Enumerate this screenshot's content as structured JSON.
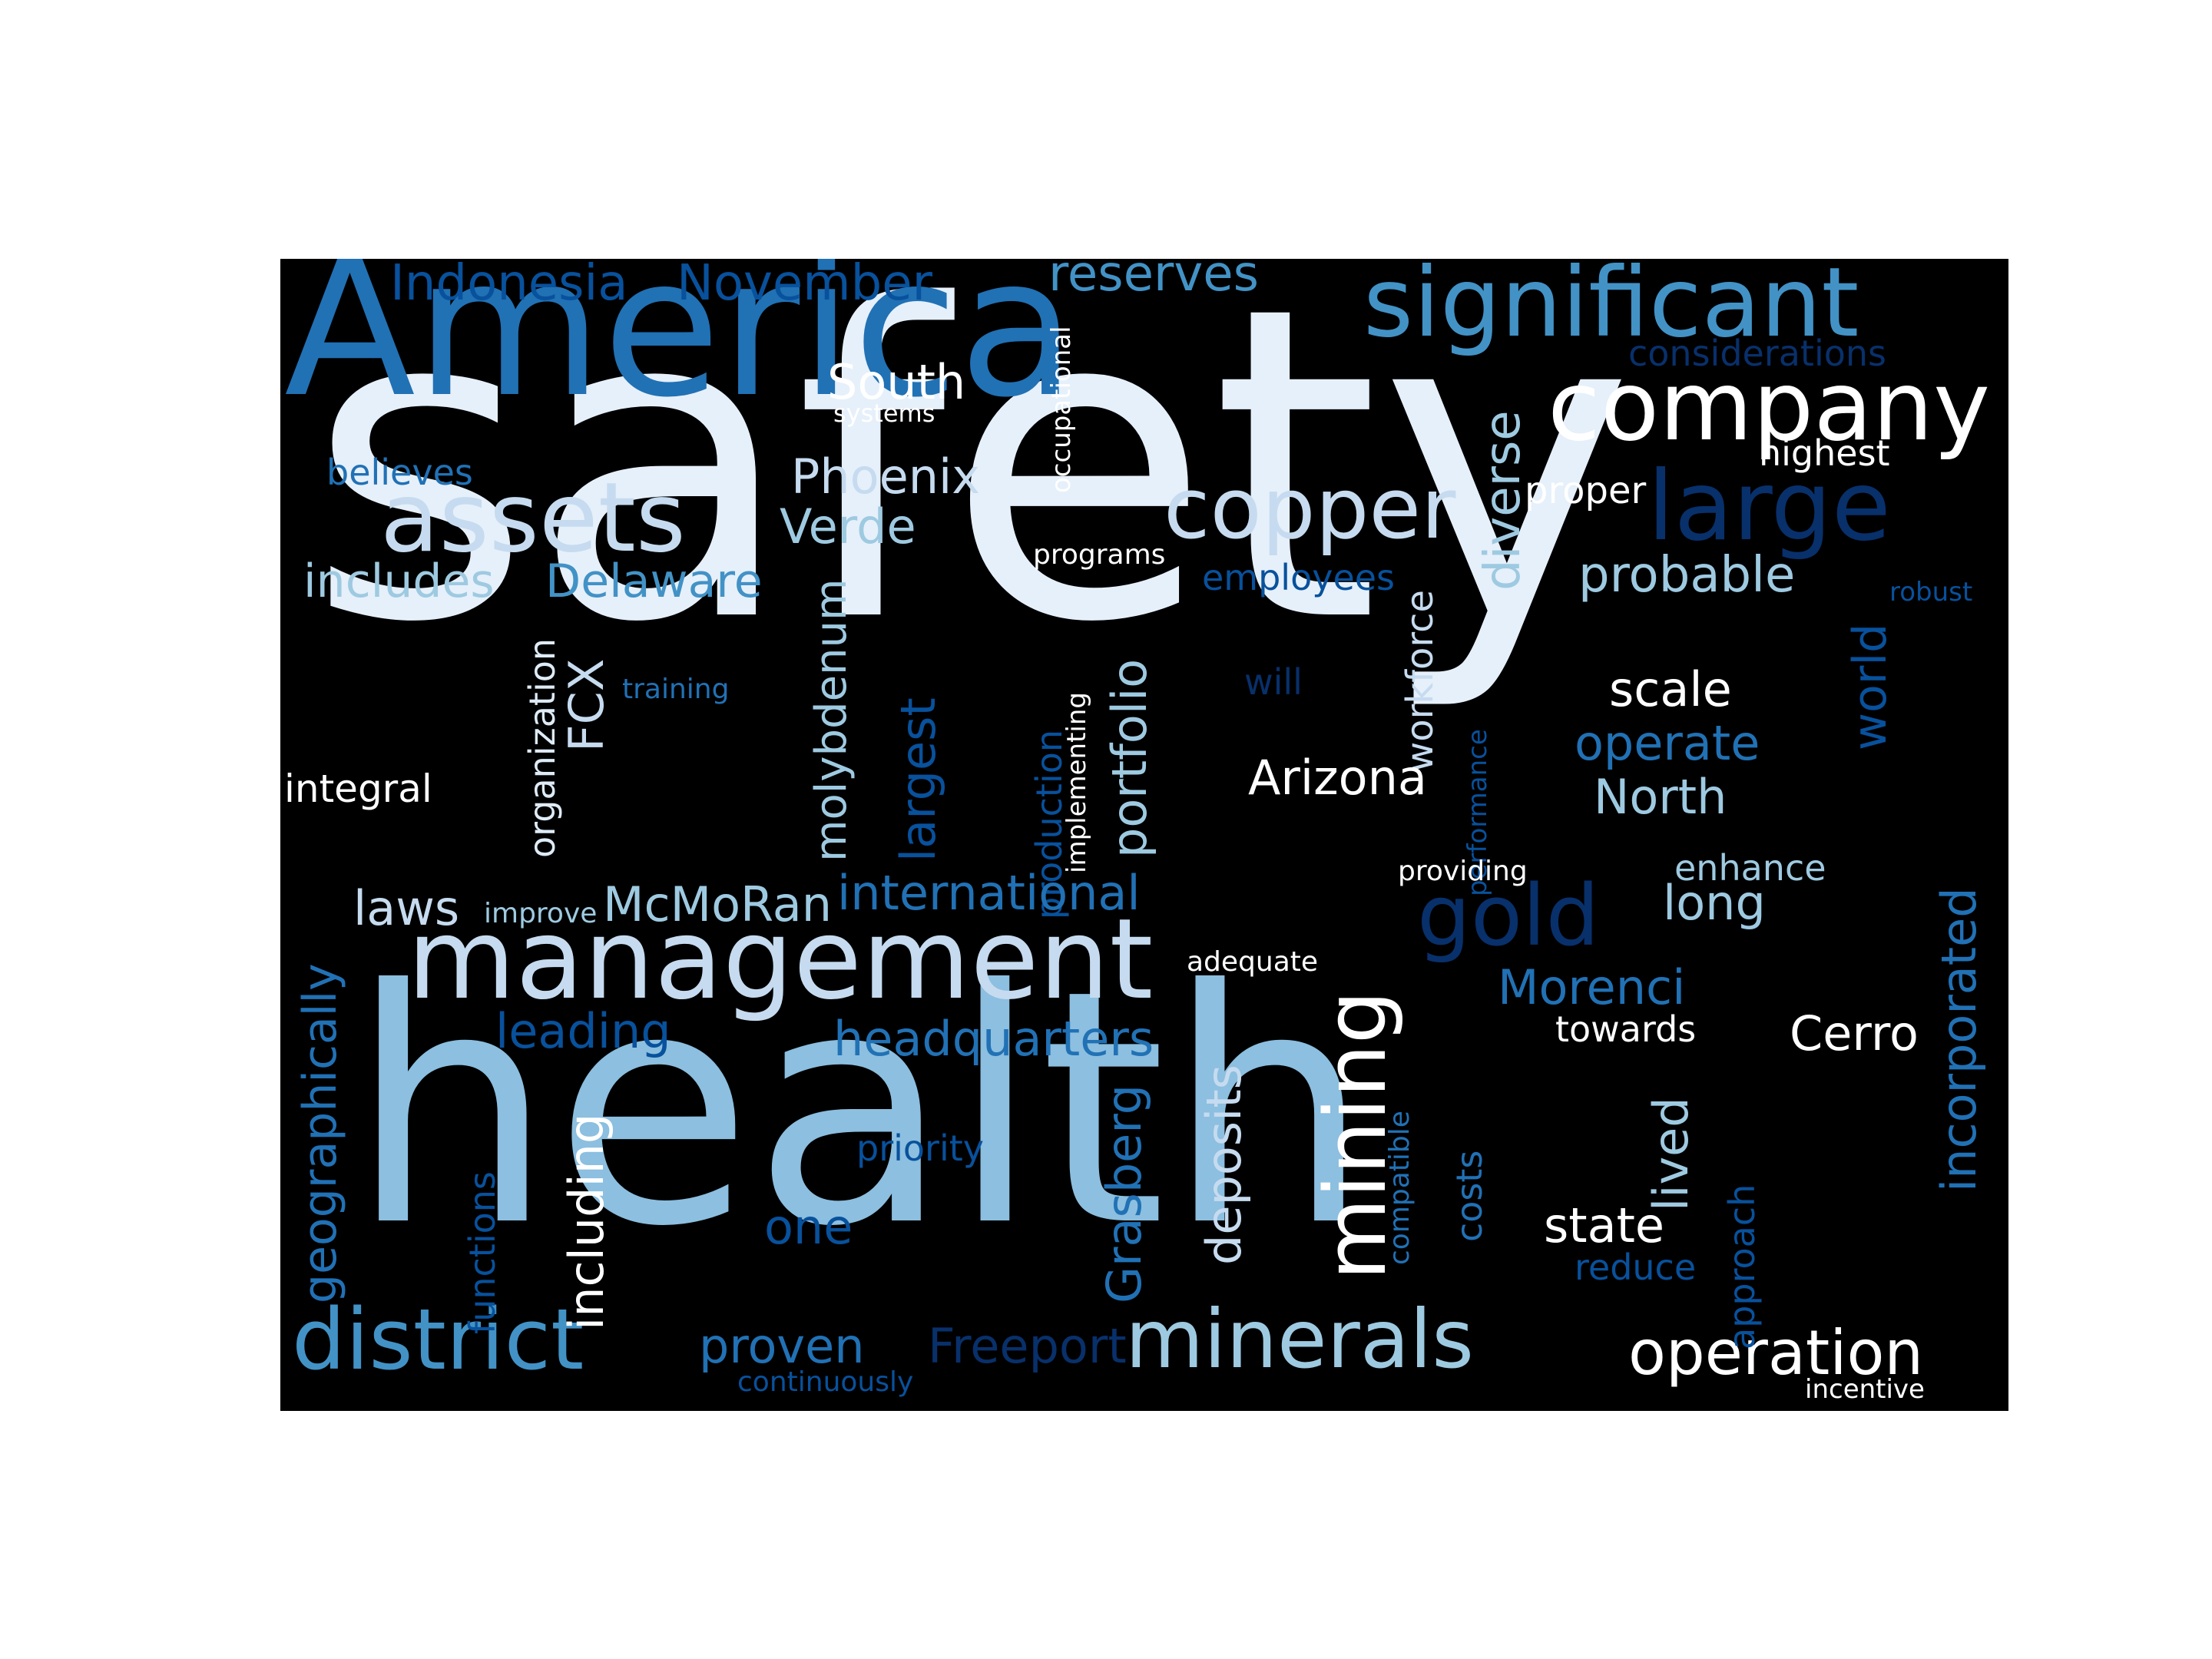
{
  "words": {
    "safety": "safety",
    "health": "health",
    "america": "America",
    "significant": "significant",
    "company": "company",
    "copper": "copper",
    "large": "large",
    "assets": "assets",
    "management": "management",
    "mining": "mining",
    "gold": "gold",
    "district": "district",
    "minerals": "minerals",
    "operation": "operation",
    "indonesia": "Indonesia",
    "november": "November",
    "reserves": "reserves",
    "considerations": "considerations",
    "south": "South",
    "systems": "systems",
    "occupational": "occupational",
    "highest": "highest",
    "believes": "believes",
    "phoenix": "Phoenix",
    "verde": "Verde",
    "diverse": "diverse",
    "proper": "proper",
    "includes": "includes",
    "delaware": "Delaware",
    "programs": "programs",
    "employees": "employees",
    "probable": "probable",
    "robust": "robust",
    "organization": "organization",
    "fcx": "FCX",
    "training": "training",
    "molybdenum": "molybdenum",
    "largest": "largest",
    "production": "production",
    "implementing": "implementing",
    "portfolio": "portfolio",
    "will": "will",
    "workforce": "workforce",
    "performance": "performance",
    "world": "world",
    "scale": "scale",
    "operate": "operate",
    "north": "North",
    "integral": "integral",
    "arizona": "Arizona",
    "laws": "laws",
    "improve": "improve",
    "mcmoran": "McMoRan",
    "international": "international",
    "providing": "providing",
    "enhance": "enhance",
    "long": "long",
    "incorporated": "incorporated",
    "geographically": "geographically",
    "adequate": "adequate",
    "morenci": "Morenci",
    "leading": "leading",
    "headquarters": "headquarters",
    "towards": "towards",
    "cerro": "Cerro",
    "including": "including",
    "deposits": "deposits",
    "grasberg": "Grasberg",
    "compatible": "compatible",
    "costs": "costs",
    "lived": "lived",
    "priority": "priority",
    "functions": "functions",
    "one": "one",
    "state": "state",
    "approach": "approach",
    "reduce": "reduce",
    "proven": "proven",
    "freeport": "Freeport",
    "continuously": "continuously",
    "incentive": "incentive"
  }
}
